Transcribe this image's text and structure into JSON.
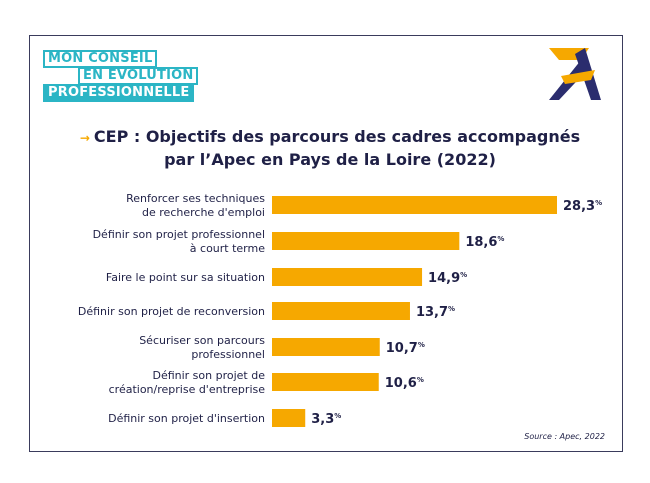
{
  "badge": {
    "line1": "MON CONSEIL",
    "line2": "EN ÉVOLUTION",
    "line3": "PROFESSIONNELLE"
  },
  "title": {
    "arrow": "→",
    "line1": "CEP : Objectifs des parcours des cadres accompagnés",
    "line2": "par l’Apec en Pays de la Loire (2022)"
  },
  "source": "Source : Apec, 2022",
  "colors": {
    "bar": "#f6a800",
    "text": "#1f2046",
    "badge": "#2bb5c5",
    "logo_blue": "#2b2d6e"
  },
  "chart_data": {
    "type": "bar",
    "orientation": "horizontal",
    "title": "CEP : Objectifs des parcours des cadres accompagnés par l’Apec en Pays de la Loire (2022)",
    "unit": "%",
    "categories": [
      [
        "Renforcer ses techniques",
        "de recherche d'emploi"
      ],
      [
        "Définir son projet professionnel",
        "à court terme"
      ],
      [
        "Faire le point sur sa situation"
      ],
      [
        "Définir son projet de reconversion"
      ],
      [
        "Sécuriser son parcours",
        "professionnel"
      ],
      [
        "Définir son projet de",
        "création/reprise d'entreprise"
      ],
      [
        "Définir son projet d'insertion"
      ]
    ],
    "values": [
      28.3,
      18.6,
      14.9,
      13.7,
      10.7,
      10.6,
      3.3
    ],
    "labels": [
      "28,3",
      "18,6",
      "14,9",
      "13,7",
      "10,7",
      "10,6",
      "3,3"
    ],
    "xlim": [
      0,
      28.3
    ]
  }
}
